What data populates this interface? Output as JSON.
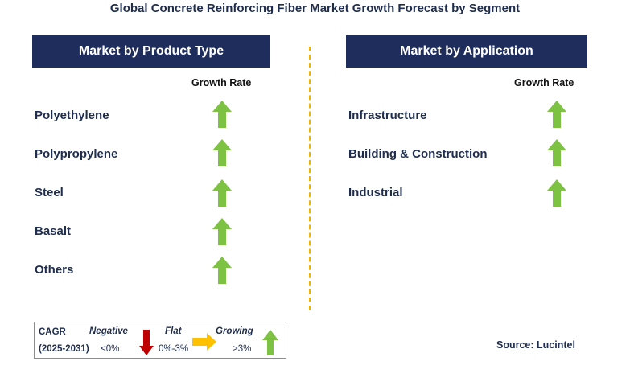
{
  "title": "Global Concrete Reinforcing Fiber Market Growth Forecast by Segment",
  "left_panel": {
    "header": "Market by Product Type",
    "growth_label": "Growth Rate",
    "items": [
      {
        "label": "Polyethylene",
        "trend": "growing"
      },
      {
        "label": "Polypropylene",
        "trend": "growing"
      },
      {
        "label": "Steel",
        "trend": "growing"
      },
      {
        "label": "Basalt",
        "trend": "growing"
      },
      {
        "label": "Others",
        "trend": "growing"
      }
    ]
  },
  "right_panel": {
    "header": "Market by Application",
    "growth_label": "Growth Rate",
    "items": [
      {
        "label": "Infrastructure",
        "trend": "growing"
      },
      {
        "label": "Building & Construction",
        "trend": "growing"
      },
      {
        "label": "Industrial",
        "trend": "growing"
      }
    ]
  },
  "legend": {
    "cagr_label": "CAGR",
    "period": "(2025-2031)",
    "negative_label": "Negative",
    "negative_range": "<0%",
    "flat_label": "Flat",
    "flat_range": "0%-3%",
    "growing_label": "Growing",
    "growing_range": ">3%"
  },
  "source": "Source: Lucintel",
  "colors": {
    "header_bg": "#1f2d5c",
    "growing": "#7dc242",
    "negative": "#c00000",
    "flat": "#ffc000",
    "divider": "#f0b400"
  }
}
